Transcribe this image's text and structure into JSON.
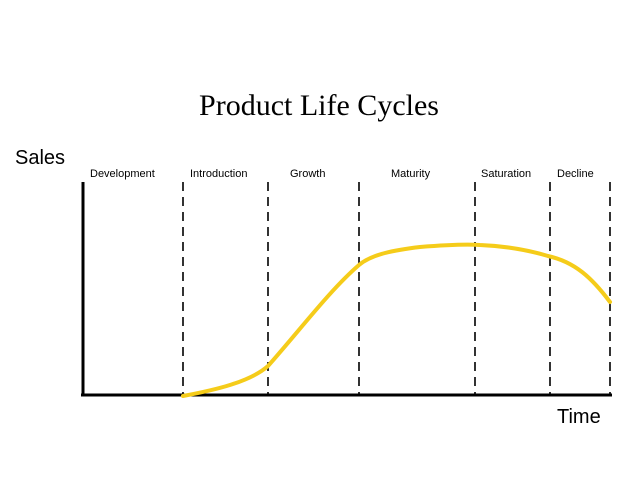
{
  "title": "Product Life Cycles",
  "y_axis_label": "Sales",
  "x_axis_label": "Time",
  "stages": [
    {
      "label": "Development"
    },
    {
      "label": "Introduction"
    },
    {
      "label": "Growth"
    },
    {
      "label": "Maturity"
    },
    {
      "label": "Saturation"
    },
    {
      "label": "Decline"
    }
  ],
  "colors": {
    "curve": "#f5cc1a",
    "axis": "#000000",
    "divider": "#000000"
  }
}
